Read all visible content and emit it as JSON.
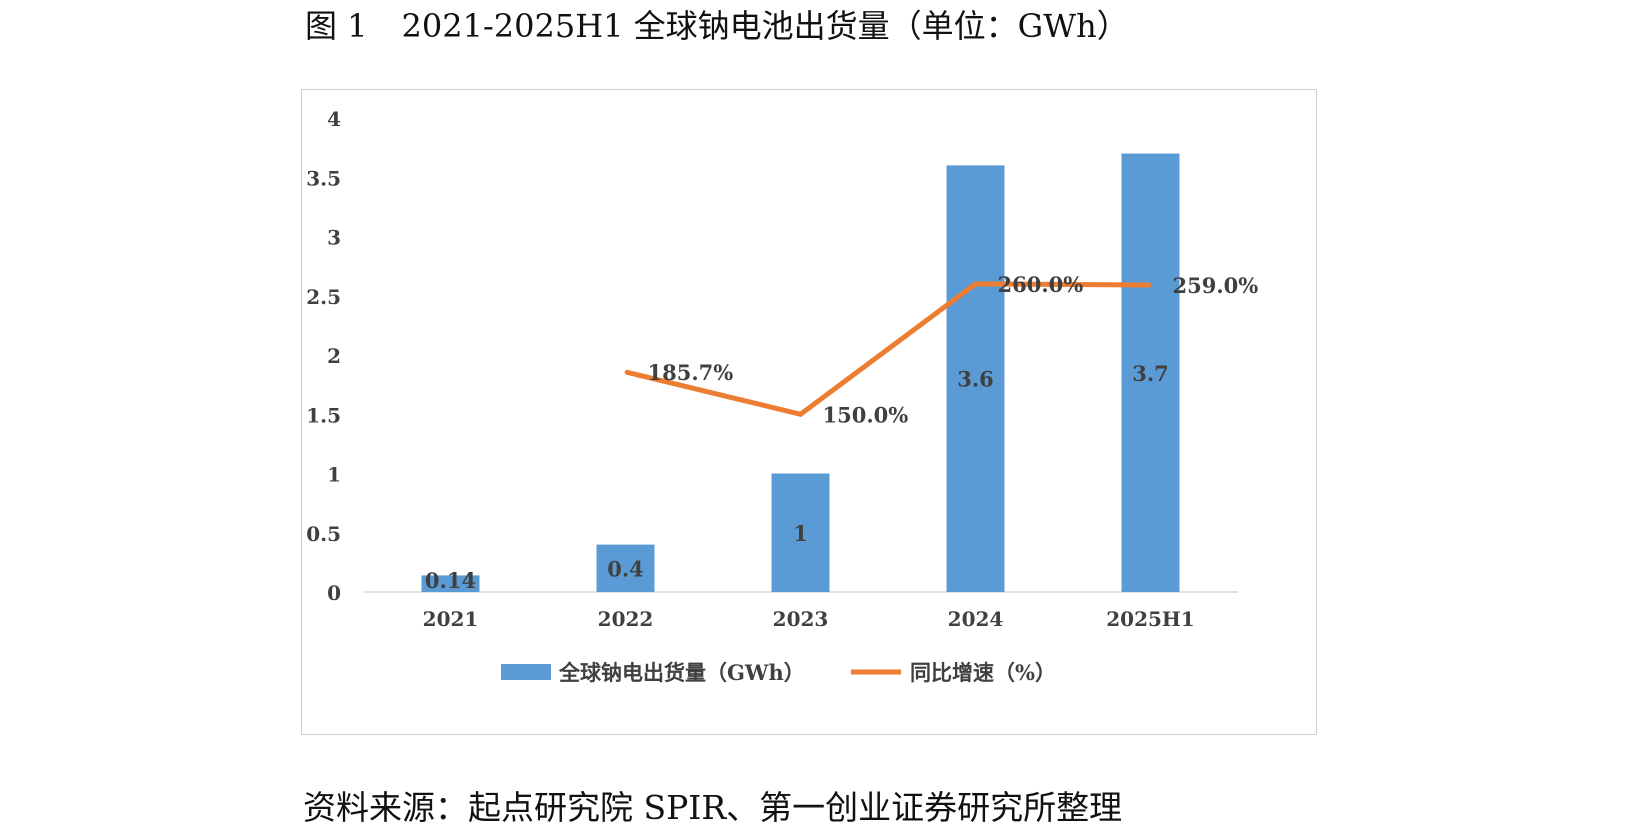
{
  "figure": {
    "title_prefix": "图 1",
    "title": "2021-2025H1 全球钠电池出货量（单位：GWh）"
  },
  "source_note": "资料来源：起点研究院 SPIR、第一创业证券研究所整理",
  "colors": {
    "bar": "#5b9bd5",
    "line": "#ed7d31",
    "axis": "#d9d9d9",
    "text": "#404040"
  },
  "chart_data": {
    "type": "bar",
    "categories": [
      "2021",
      "2022",
      "2023",
      "2024",
      "2025H1"
    ],
    "ylim": [
      0,
      4
    ],
    "yticks": [
      "0",
      "0.5",
      "1",
      "1.5",
      "2",
      "2.5",
      "3",
      "3.5",
      "4"
    ],
    "grid": false,
    "legend_position": "bottom",
    "series": [
      {
        "name": "全球钠电出货量（GWh）",
        "kind": "bar",
        "values": [
          0.14,
          0.4,
          1,
          3.6,
          3.7
        ],
        "labels": [
          "0.14",
          "0.4",
          "1",
          "3.6",
          "3.7"
        ]
      },
      {
        "name": "同比增速（%）",
        "kind": "line",
        "values": [
          null,
          185.7,
          150.0,
          260.0,
          259.0
        ],
        "labels": [
          "",
          "185.7%",
          "150.0%",
          "260.0%",
          "259.0%"
        ],
        "scale_max": 400
      }
    ]
  }
}
